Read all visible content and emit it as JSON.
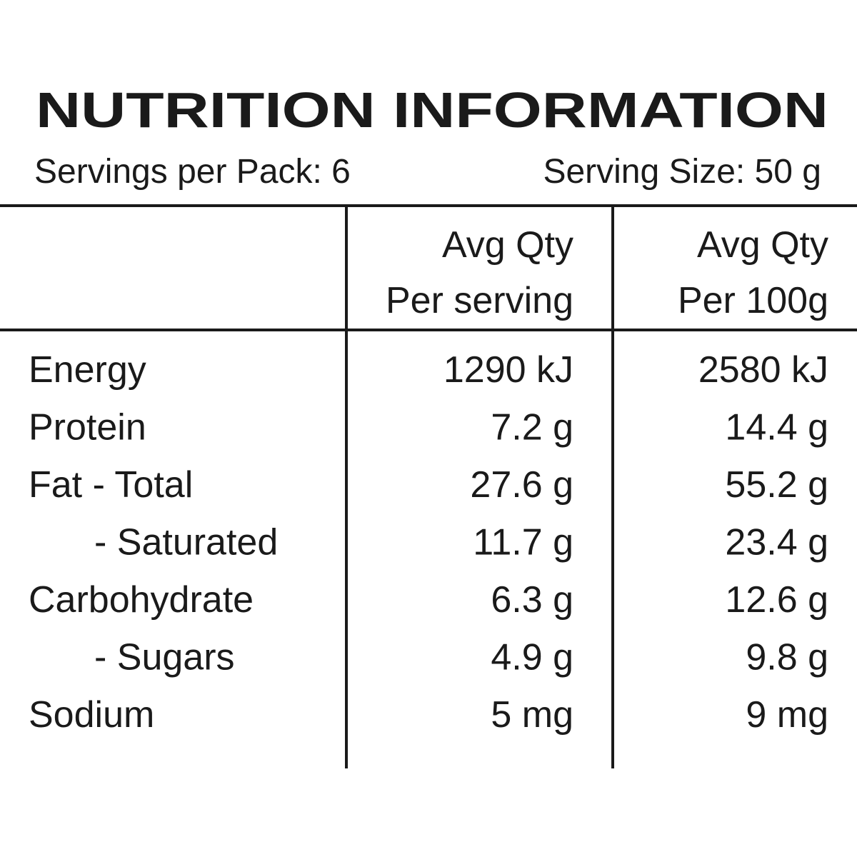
{
  "header": {
    "title": "NUTRITION INFORMATION",
    "servings_per_pack": "Servings per Pack: 6",
    "serving_size": "Serving Size: 50 g"
  },
  "table": {
    "columns": [
      [
        "Avg Qty",
        "Per serving"
      ],
      [
        "Avg Qty",
        "Per 100g"
      ]
    ],
    "rows": [
      [
        "Energy",
        "1290 kJ",
        "2580 kJ"
      ],
      [
        "Protein",
        "7.2 g",
        "14.4 g"
      ],
      [
        "Fat - Total",
        "27.6 g",
        "55.2 g"
      ],
      [
        "- Saturated",
        "11.7 g",
        "23.4 g"
      ],
      [
        "Carbohydrate",
        "6.3 g",
        "12.6 g"
      ],
      [
        "- Sugars",
        "4.9 g",
        "9.8 g"
      ],
      [
        "Sodium",
        "5 mg",
        "9 mg"
      ]
    ]
  }
}
